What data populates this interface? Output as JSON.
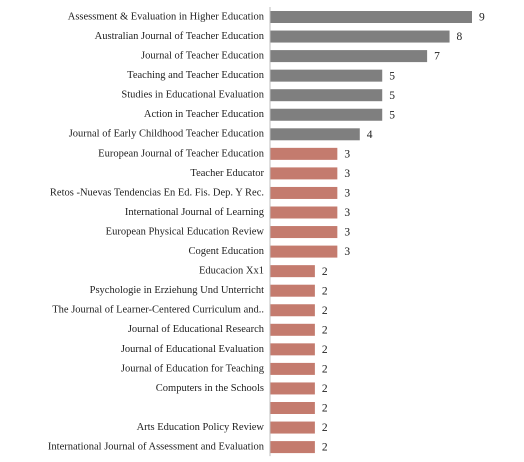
{
  "chart_data": {
    "type": "bar",
    "orientation": "horizontal",
    "categories": [
      "Assessment & Evaluation in Higher Education",
      "Australian Journal of Teacher Education",
      "Journal of Teacher Education",
      "Teaching and Teacher Education",
      "Studies in Educational Evaluation",
      "Action in Teacher Education",
      "Journal of Early Childhood Teacher Education",
      "European Journal of Teacher Education",
      "Teacher Educator",
      "Retos -Nuevas Tendencias En Ed. Fis. Dep. Y Rec.",
      "International Journal of Learning",
      "European Physical Education Review",
      "Cogent Education",
      "Educacion Xx1",
      "Psychologie in Erziehung Und Unterricht",
      "The Journal of Learner-Centered Curriculum and..",
      "Journal of Educational Research",
      "Journal of Educational Evaluation",
      "Journal of Education for Teaching",
      "Computers in the Schools",
      null,
      "Arts Education Policy Review",
      "International Journal of Assessment and Evaluation"
    ],
    "values": [
      9,
      8,
      7,
      5,
      5,
      5,
      4,
      3,
      3,
      3,
      3,
      3,
      3,
      2,
      2,
      2,
      2,
      2,
      2,
      2,
      2,
      2,
      2
    ],
    "colors": [
      "#7f7f7f",
      "#7f7f7f",
      "#7f7f7f",
      "#7f7f7f",
      "#7f7f7f",
      "#7f7f7f",
      "#7f7f7f",
      "#c47b6e",
      "#c47b6e",
      "#c47b6e",
      "#c47b6e",
      "#c47b6e",
      "#c47b6e",
      "#c47b6e",
      "#c47b6e",
      "#c47b6e",
      "#c47b6e",
      "#c47b6e",
      "#c47b6e",
      "#c47b6e",
      "#c47b6e",
      "#c47b6e",
      "#c47b6e"
    ]
  }
}
